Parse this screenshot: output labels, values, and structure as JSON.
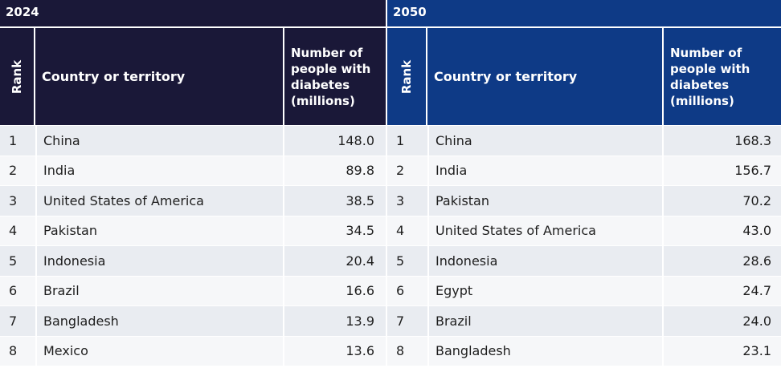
{
  "left": {
    "year": "2024",
    "headers": {
      "rank": "Rank",
      "country": "Country or territory",
      "number": "Number of people with diabetes (millions)"
    },
    "rows": [
      {
        "rank": "1",
        "country": "China",
        "value": "148.0"
      },
      {
        "rank": "2",
        "country": "India",
        "value": "89.8"
      },
      {
        "rank": "3",
        "country": "United States of America",
        "value": "38.5"
      },
      {
        "rank": "4",
        "country": "Pakistan",
        "value": "34.5"
      },
      {
        "rank": "5",
        "country": "Indonesia",
        "value": "20.4"
      },
      {
        "rank": "6",
        "country": "Brazil",
        "value": "16.6"
      },
      {
        "rank": "7",
        "country": "Bangladesh",
        "value": "13.9"
      },
      {
        "rank": "8",
        "country": "Mexico",
        "value": "13.6"
      }
    ]
  },
  "right": {
    "year": "2050",
    "headers": {
      "rank": "Rank",
      "country": "Country or territory",
      "number": "Number of people with diabetes (millions)"
    },
    "rows": [
      {
        "rank": "1",
        "country": "China",
        "value": "168.3"
      },
      {
        "rank": "2",
        "country": "India",
        "value": "156.7"
      },
      {
        "rank": "3",
        "country": "Pakistan",
        "value": "70.2"
      },
      {
        "rank": "4",
        "country": "United States of America",
        "value": "43.0"
      },
      {
        "rank": "5",
        "country": "Indonesia",
        "value": "28.6"
      },
      {
        "rank": "6",
        "country": "Egypt",
        "value": "24.7"
      },
      {
        "rank": "7",
        "country": "Brazil",
        "value": "24.0"
      },
      {
        "rank": "8",
        "country": "Bangladesh",
        "value": "23.1"
      }
    ]
  },
  "colors": {
    "header_2024": "#1a1838",
    "header_2050": "#0e3a86",
    "row_odd": "#e9ecf1",
    "row_even": "#f6f7f9"
  }
}
